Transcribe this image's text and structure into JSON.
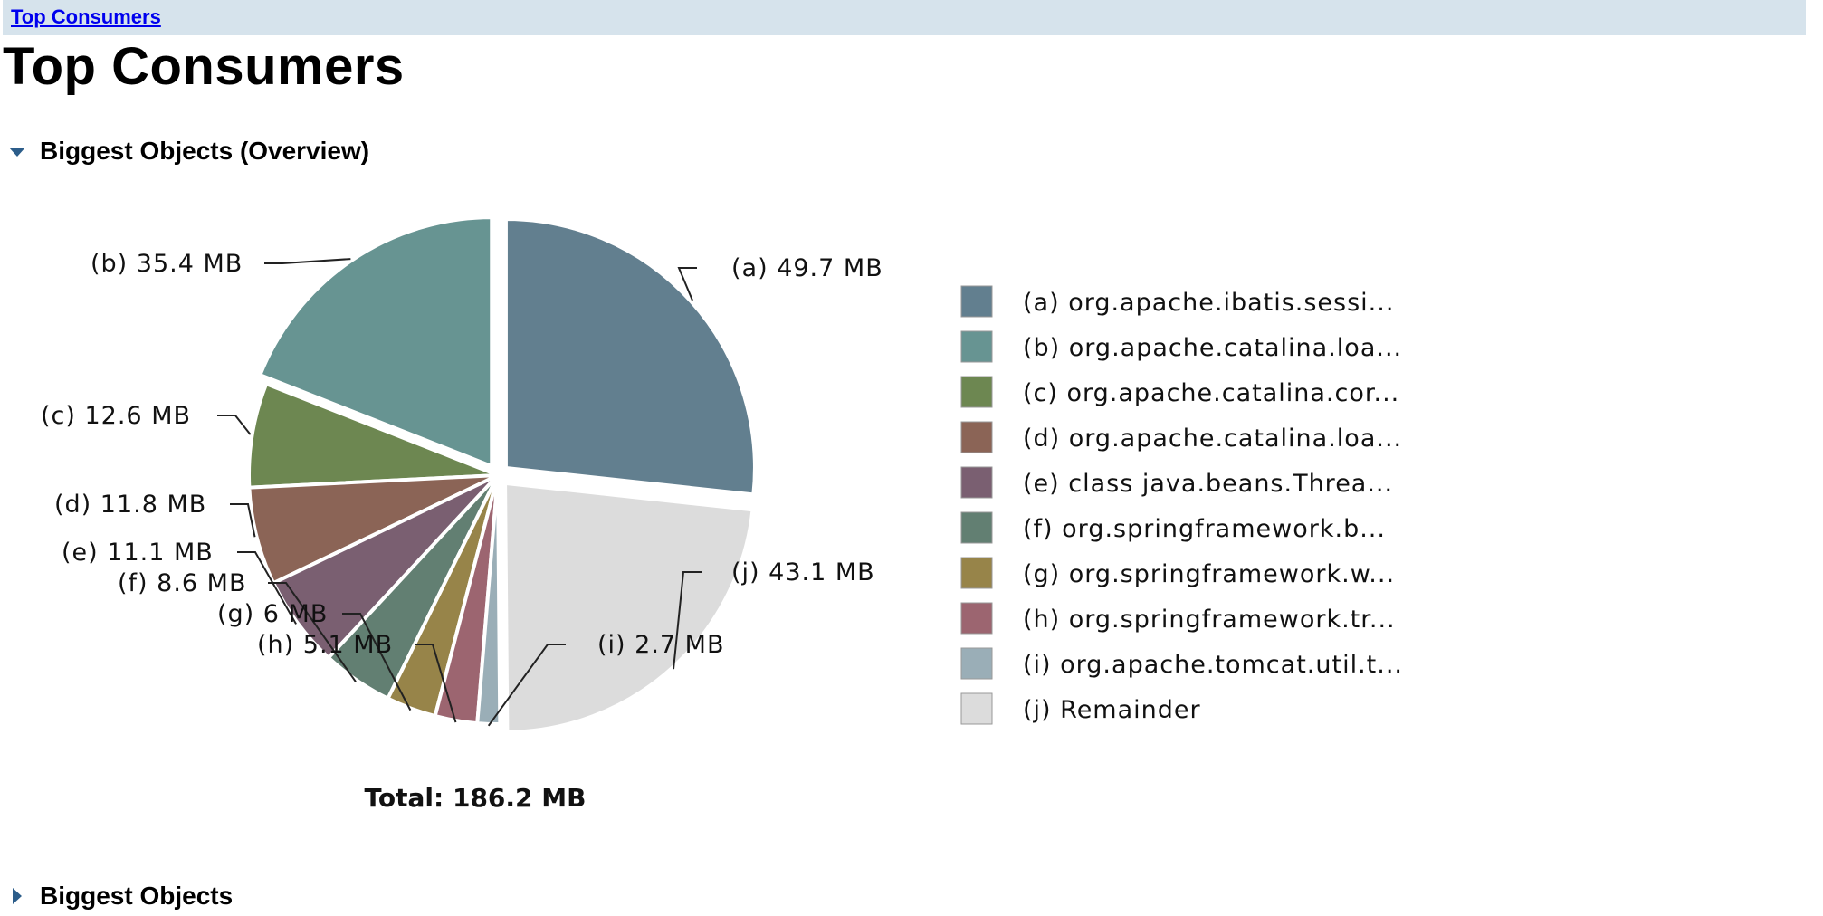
{
  "breadcrumb": {
    "link_label": "Top Consumers"
  },
  "page": {
    "title": "Top Consumers"
  },
  "sections": [
    {
      "label": "Biggest Objects (Overview)",
      "expanded": true,
      "icon": "triangle-down-icon"
    },
    {
      "label": "Biggest Objects",
      "expanded": false,
      "icon": "triangle-right-icon"
    }
  ],
  "chart_data": {
    "type": "pie",
    "unit": "MB",
    "total_label": "Total: 186.2 MB",
    "slices": [
      {
        "tag": "(a)",
        "value": 49.7,
        "value_label": "49.7 MB",
        "legend": "org.apache.ibatis.sessi...",
        "color": "#627f8f"
      },
      {
        "tag": "(b)",
        "value": 35.4,
        "value_label": "35.4 MB",
        "legend": "org.apache.catalina.loa...",
        "color": "#679492"
      },
      {
        "tag": "(c)",
        "value": 12.6,
        "value_label": "12.6 MB",
        "legend": "org.apache.catalina.cor...",
        "color": "#6d8751"
      },
      {
        "tag": "(d)",
        "value": 11.8,
        "value_label": "11.8 MB",
        "legend": "org.apache.catalina.loa...",
        "color": "#8b6456"
      },
      {
        "tag": "(e)",
        "value": 11.1,
        "value_label": "11.1 MB",
        "legend": "class java.beans.Threa...",
        "color": "#7a5f71"
      },
      {
        "tag": "(f)",
        "value": 8.6,
        "value_label": "8.6 MB",
        "legend": "org.springframework.b...",
        "color": "#627f72"
      },
      {
        "tag": "(g)",
        "value": 6.0,
        "value_label": "6 MB",
        "legend": "org.springframework.w...",
        "color": "#978449"
      },
      {
        "tag": "(h)",
        "value": 5.1,
        "value_label": "5.1 MB",
        "legend": "org.springframework.tr...",
        "color": "#9c6570"
      },
      {
        "tag": "(i)",
        "value": 2.7,
        "value_label": "2.7 MB",
        "legend": "org.apache.tomcat.util.t...",
        "color": "#9aaeb7"
      },
      {
        "tag": "(j)",
        "value": 43.1,
        "value_label": "43.1 MB",
        "legend": "Remainder",
        "color": "#dcdcdc"
      }
    ]
  }
}
